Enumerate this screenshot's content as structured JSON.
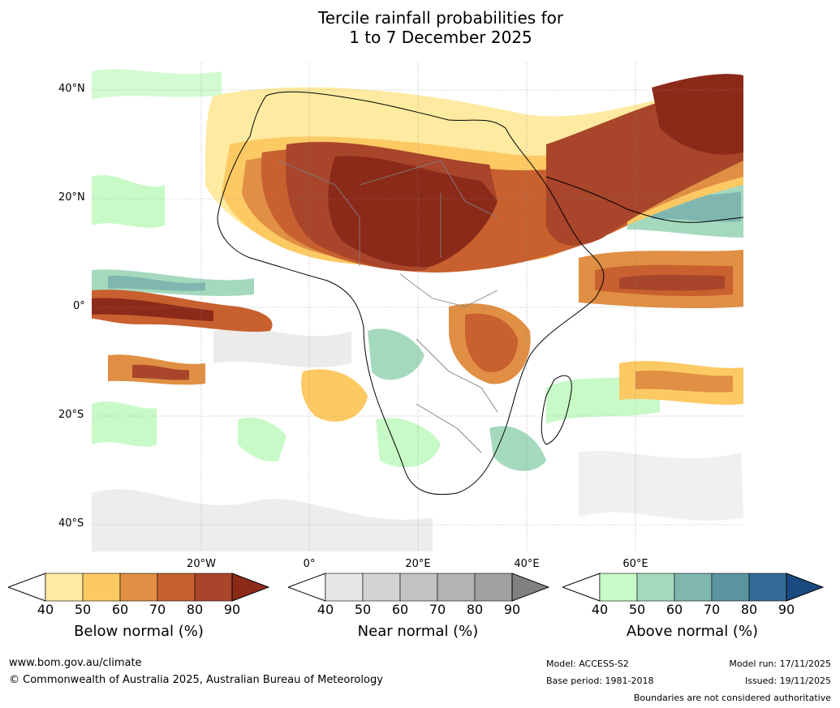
{
  "title_line1": "Tercile rainfall probabilities for",
  "title_line2": "1 to 7 December 2025",
  "lat_labels": [
    "40°N",
    "20°N",
    "0°",
    "20°S",
    "40°S"
  ],
  "lon_labels": [
    "20°W",
    "0°",
    "20°E",
    "40°E",
    "60°E"
  ],
  "legend": {
    "below": {
      "title": "Below normal (%)",
      "ticks": [
        "40",
        "50",
        "60",
        "70",
        "80",
        "90"
      ],
      "colors": [
        "#ffffff",
        "#feeaa0",
        "#fdc963",
        "#e08f44",
        "#c8602f",
        "#a8452a",
        "#8c2a1a"
      ]
    },
    "near": {
      "title": "Near normal (%)",
      "ticks": [
        "40",
        "50",
        "60",
        "70",
        "80",
        "90"
      ],
      "colors": [
        "#ffffff",
        "#e6e6e6",
        "#d3d3d3",
        "#c3c3c3",
        "#b3b3b3",
        "#a0a0a0",
        "#808080"
      ]
    },
    "above": {
      "title": "Above normal (%)",
      "ticks": [
        "40",
        "50",
        "60",
        "70",
        "80",
        "90"
      ],
      "colors": [
        "#ffffff",
        "#c8fac8",
        "#a5d9be",
        "#7fb7b0",
        "#5b94a0",
        "#336b96",
        "#1a4a80"
      ]
    }
  },
  "footer": {
    "url": "www.bom.gov.au/climate",
    "copyright": "© Commonwealth of Australia 2025, Australian Bureau of Meteorology",
    "model": "Model: ACCESS-S2",
    "base_period": "Base period: 1981-2018",
    "model_run": "Model run: 17/11/2025",
    "issued": "Issued: 19/11/2025",
    "disclaimer": "Boundaries are not considered authoritative"
  }
}
